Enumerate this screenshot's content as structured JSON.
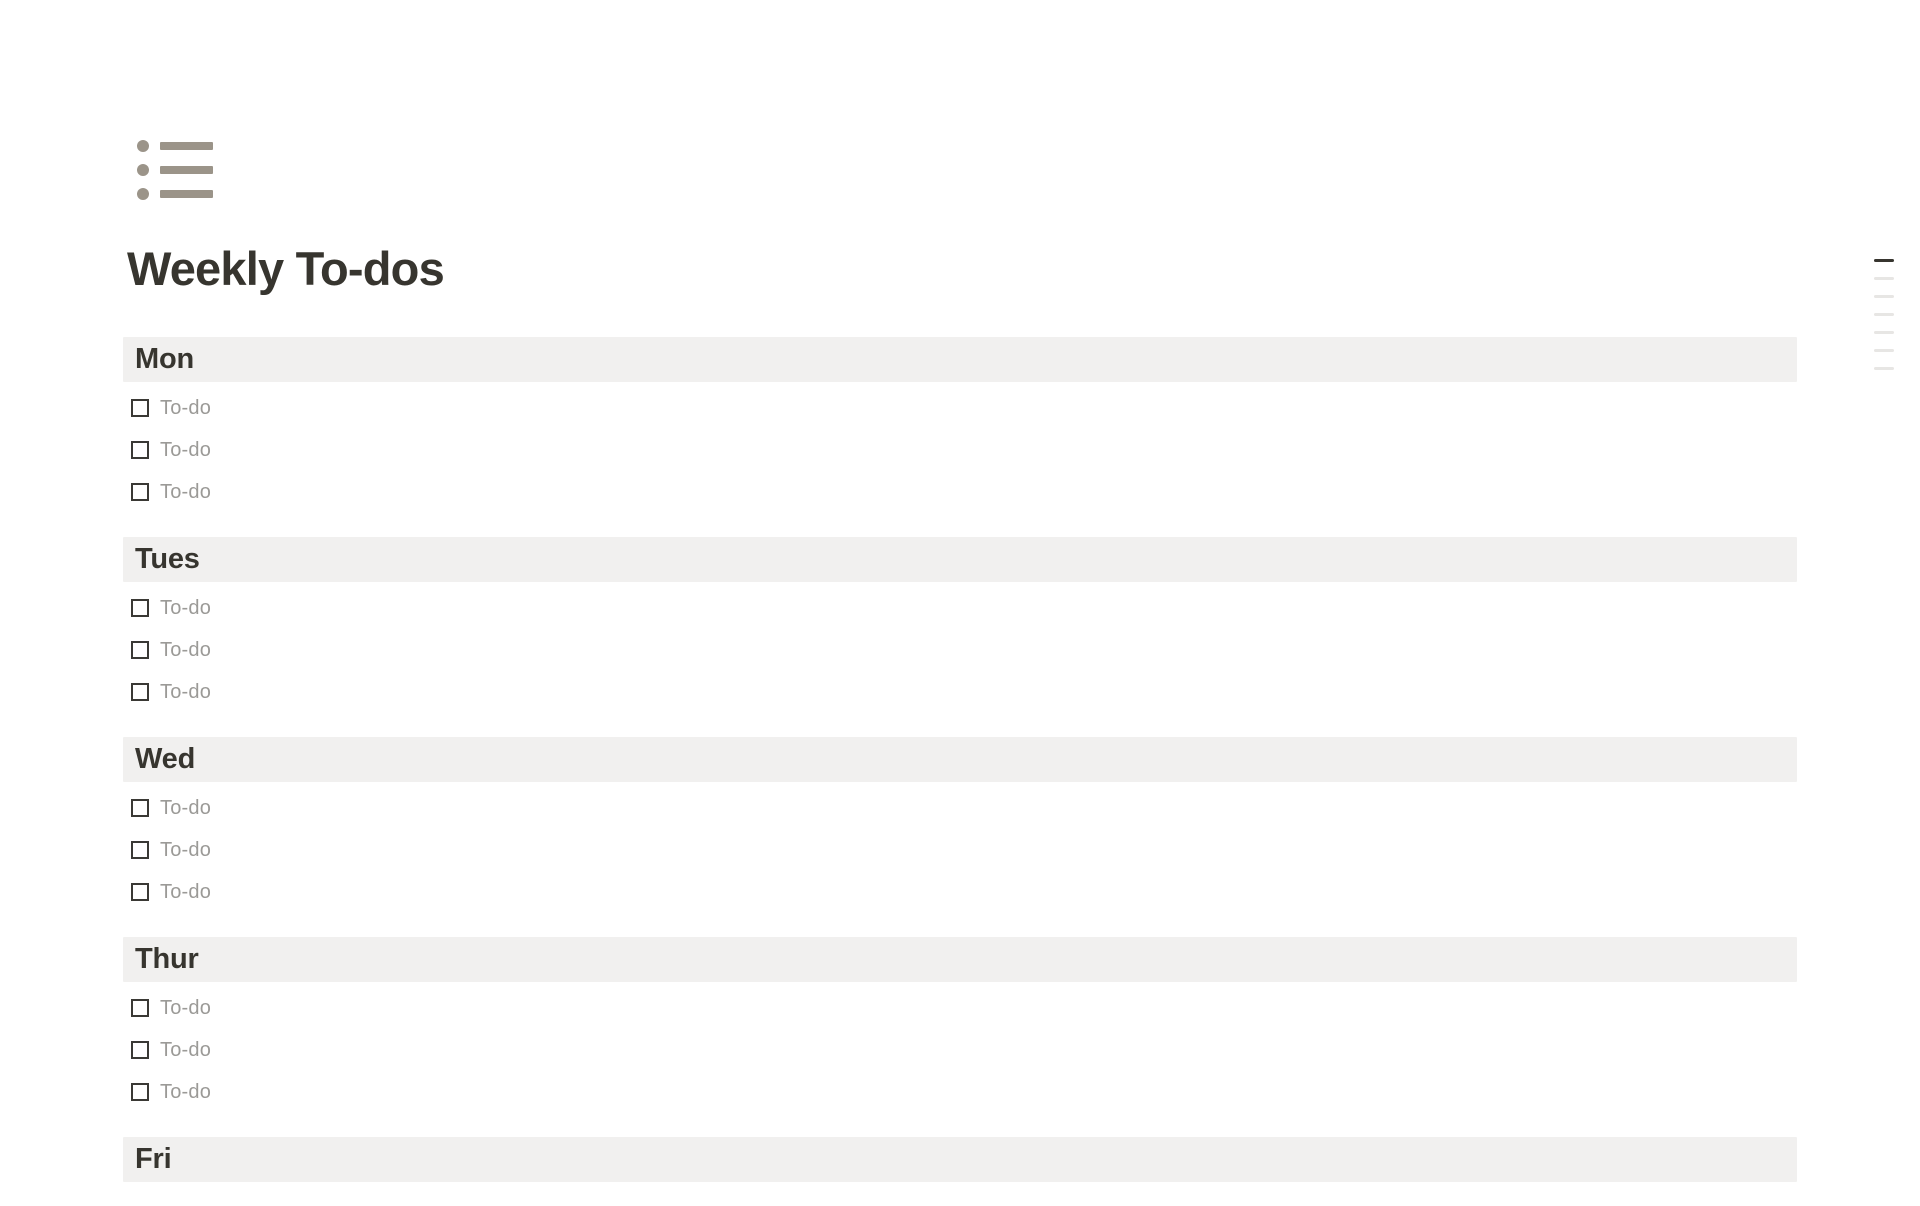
{
  "page": {
    "title": "Weekly To-dos",
    "icon": "bulleted-list-icon"
  },
  "colors": {
    "text": "#37352f",
    "placeholder": "#9b9a97",
    "section_bg": "#f1f0ef",
    "icon": "#9b9489",
    "checkbox_border": "#3a3935",
    "outline_active": "#37352f",
    "outline_inactive": "#e7e6e4",
    "page_bg": "#ffffff"
  },
  "sections": [
    {
      "label": "Mon",
      "todos": [
        {
          "label": "To-do",
          "checked": false
        },
        {
          "label": "To-do",
          "checked": false
        },
        {
          "label": "To-do",
          "checked": false
        }
      ]
    },
    {
      "label": "Tues",
      "todos": [
        {
          "label": "To-do",
          "checked": false
        },
        {
          "label": "To-do",
          "checked": false
        },
        {
          "label": "To-do",
          "checked": false
        }
      ]
    },
    {
      "label": "Wed",
      "todos": [
        {
          "label": "To-do",
          "checked": false
        },
        {
          "label": "To-do",
          "checked": false
        },
        {
          "label": "To-do",
          "checked": false
        }
      ]
    },
    {
      "label": "Thur",
      "todos": [
        {
          "label": "To-do",
          "checked": false
        },
        {
          "label": "To-do",
          "checked": false
        },
        {
          "label": "To-do",
          "checked": false
        }
      ]
    },
    {
      "label": "Fri",
      "todos": []
    }
  ],
  "outline": {
    "total_lines": 7,
    "active_line_index": 0
  }
}
